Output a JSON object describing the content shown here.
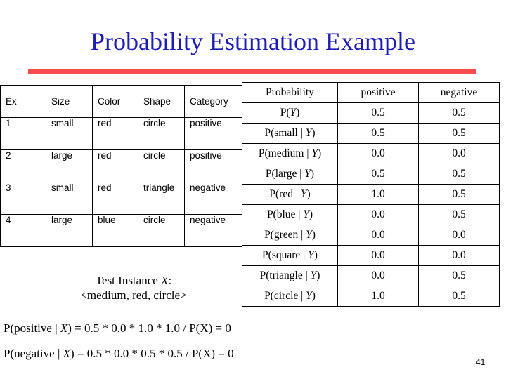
{
  "title": "Probability Estimation Example",
  "training_table": {
    "headers": [
      "Ex",
      "Size",
      "Color",
      "Shape",
      "Category"
    ],
    "rows": [
      [
        "1",
        "small",
        "red",
        "circle",
        "positive"
      ],
      [
        "2",
        "large",
        "red",
        "circle",
        "positive"
      ],
      [
        "3",
        "small",
        "red",
        "triangle",
        "negative"
      ],
      [
        "4",
        "large",
        "blue",
        "circle",
        "negative"
      ]
    ]
  },
  "probability_table": {
    "headers": [
      "Probability",
      "positive",
      "negative"
    ],
    "rows": [
      {
        "pre": "P(",
        "var": "Y",
        "post": ")",
        "pos": "0.5",
        "neg": "0.5"
      },
      {
        "pre": "P(small | ",
        "var": "Y",
        "post": ")",
        "pos": "0.5",
        "neg": "0.5"
      },
      {
        "pre": "P(medium | ",
        "var": "Y",
        "post": ")",
        "pos": "0.0",
        "neg": "0.0"
      },
      {
        "pre": "P(large | ",
        "var": "Y",
        "post": ")",
        "pos": "0.5",
        "neg": "0.5"
      },
      {
        "pre": "P(red | ",
        "var": "Y",
        "post": ")",
        "pos": "1.0",
        "neg": "0.5"
      },
      {
        "pre": "P(blue | ",
        "var": "Y",
        "post": ")",
        "pos": "0.0",
        "neg": "0.5"
      },
      {
        "pre": "P(green | ",
        "var": "Y",
        "post": ")",
        "pos": "0.0",
        "neg": "0.0"
      },
      {
        "pre": "P(square | ",
        "var": "Y",
        "post": ")",
        "pos": "0.0",
        "neg": "0.0"
      },
      {
        "pre": "P(triangle | ",
        "var": "Y",
        "post": ")",
        "pos": "0.0",
        "neg": "0.5"
      },
      {
        "pre": "P(circle | ",
        "var": "Y",
        "post": ")",
        "pos": "1.0",
        "neg": "0.5"
      }
    ]
  },
  "test_instance": {
    "label_pre": "Test Instance ",
    "label_var": "X",
    "label_post": ":",
    "value": "<medium, red, circle>"
  },
  "equations": {
    "positive": {
      "pre": "P(positive | ",
      "var": "X",
      "post": ") = 0.5 * 0.0 * 1.0 * 1.0 / P(X) = 0"
    },
    "negative": {
      "pre": "P(negative | ",
      "var": "X",
      "post": ") = 0.5 * 0.0 * 0.5 * 0.5 / P(X) = 0"
    }
  },
  "slide_number": "41",
  "colors": {
    "title": "#1d1db3",
    "rule": "#ff4d4d"
  }
}
